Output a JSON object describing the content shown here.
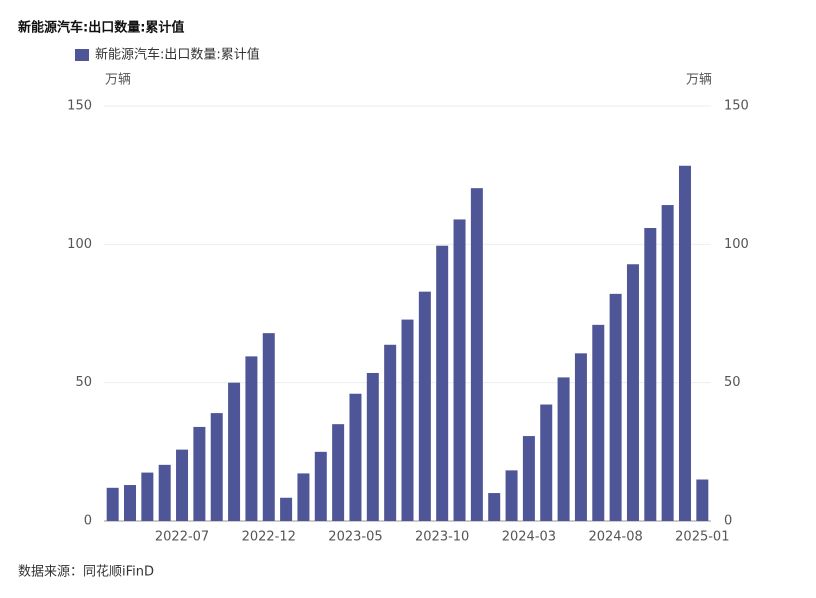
{
  "chart_data": {
    "type": "bar",
    "title": "新能源汽车:出口数量:累计值",
    "y_unit": "万辆",
    "y2_unit": "万辆",
    "source": "数据来源：同花顺iFinD",
    "categories": [
      null,
      null,
      null,
      null,
      "2022-07",
      null,
      null,
      null,
      null,
      "2022-12",
      null,
      null,
      null,
      null,
      "2023-05",
      null,
      null,
      null,
      null,
      "2023-10",
      null,
      null,
      null,
      null,
      "2024-03",
      null,
      null,
      null,
      null,
      "2024-08",
      null,
      null,
      null,
      null,
      "2025-01"
    ],
    "series": [
      {
        "name": "新能源汽车:出口数量:累计值",
        "color": "#4e5697",
        "values": [
          12,
          13,
          17.5,
          20.3,
          25.8,
          34,
          39,
          50,
          59.5,
          67.9,
          8.4,
          17.2,
          25,
          35,
          46,
          53.5,
          63.7,
          72.8,
          82.9,
          99.5,
          109,
          120.3,
          10.1,
          18.3,
          30.7,
          42.1,
          51.9,
          60.6,
          70.9,
          82.1,
          92.8,
          105.9,
          114.2,
          128.4,
          15
        ]
      }
    ],
    "ylim": [
      0,
      150
    ],
    "yticks": [
      0,
      50,
      100,
      150
    ],
    "y2lim": [
      0,
      150
    ],
    "y2ticks": [
      0,
      50,
      100,
      150
    ],
    "grid": true
  }
}
